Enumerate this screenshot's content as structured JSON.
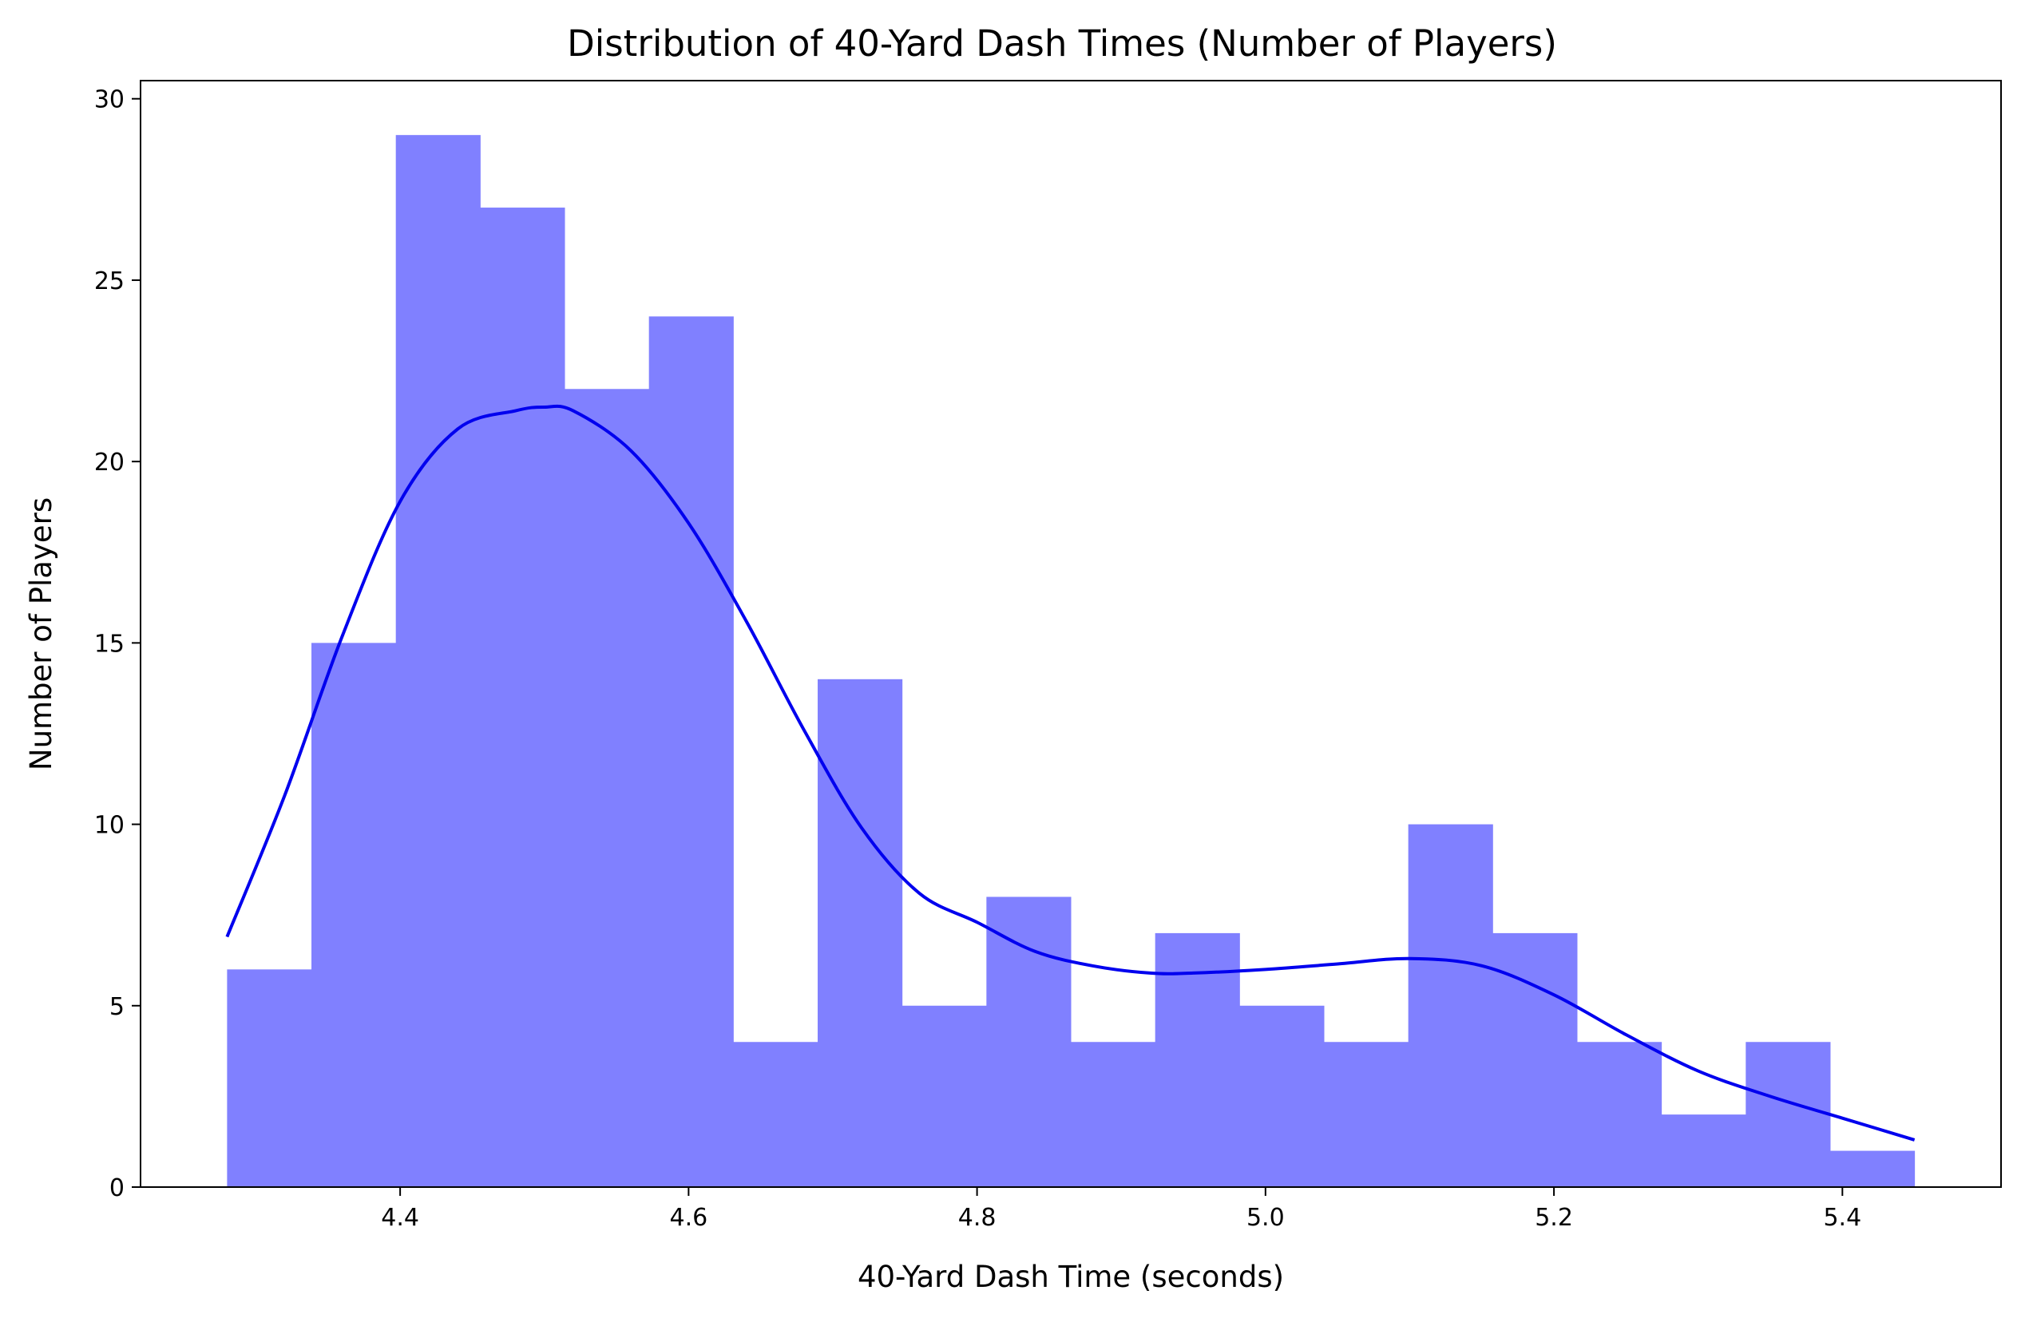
{
  "chart_data": {
    "type": "bar",
    "title": "Distribution of 40-Yard Dash Times (Number of Players)",
    "xlabel": "40-Yard Dash Time (seconds)",
    "ylabel": "Number of Players",
    "xlim": [
      4.22,
      5.51
    ],
    "ylim": [
      0,
      30.5
    ],
    "x_ticks": [
      "4.4",
      "4.6",
      "4.8",
      "5.0",
      "5.2",
      "5.4"
    ],
    "y_ticks": [
      "0",
      "5",
      "10",
      "15",
      "20",
      "25",
      "30"
    ],
    "grid": false,
    "bar_color": "#8080ff",
    "curve_color": "#0000ee",
    "bin_edges": [
      4.28,
      4.3385,
      4.397,
      4.4555,
      4.514,
      4.5725,
      4.631,
      4.6895,
      4.748,
      4.8065,
      4.865,
      4.9235,
      4.982,
      5.0405,
      5.099,
      5.1575,
      5.216,
      5.2745,
      5.333,
      5.3915,
      5.45
    ],
    "counts": [
      6,
      15,
      29,
      27,
      22,
      24,
      4,
      14,
      5,
      8,
      4,
      7,
      5,
      4,
      10,
      7,
      4,
      2,
      4,
      1
    ],
    "kde": {
      "x": [
        4.28,
        4.32,
        4.36,
        4.4,
        4.44,
        4.48,
        4.5,
        4.52,
        4.56,
        4.6,
        4.64,
        4.68,
        4.72,
        4.76,
        4.8,
        4.84,
        4.88,
        4.92,
        4.95,
        5.0,
        5.05,
        5.1,
        5.15,
        5.2,
        5.25,
        5.3,
        5.35,
        5.4,
        5.45
      ],
      "y": [
        6.9,
        10.8,
        15.2,
        18.9,
        20.9,
        21.4,
        21.5,
        21.4,
        20.3,
        18.3,
        15.6,
        12.6,
        9.9,
        8.1,
        7.3,
        6.5,
        6.1,
        5.9,
        5.9,
        6.0,
        6.15,
        6.3,
        6.1,
        5.3,
        4.2,
        3.2,
        2.5,
        1.9,
        1.3
      ]
    }
  }
}
